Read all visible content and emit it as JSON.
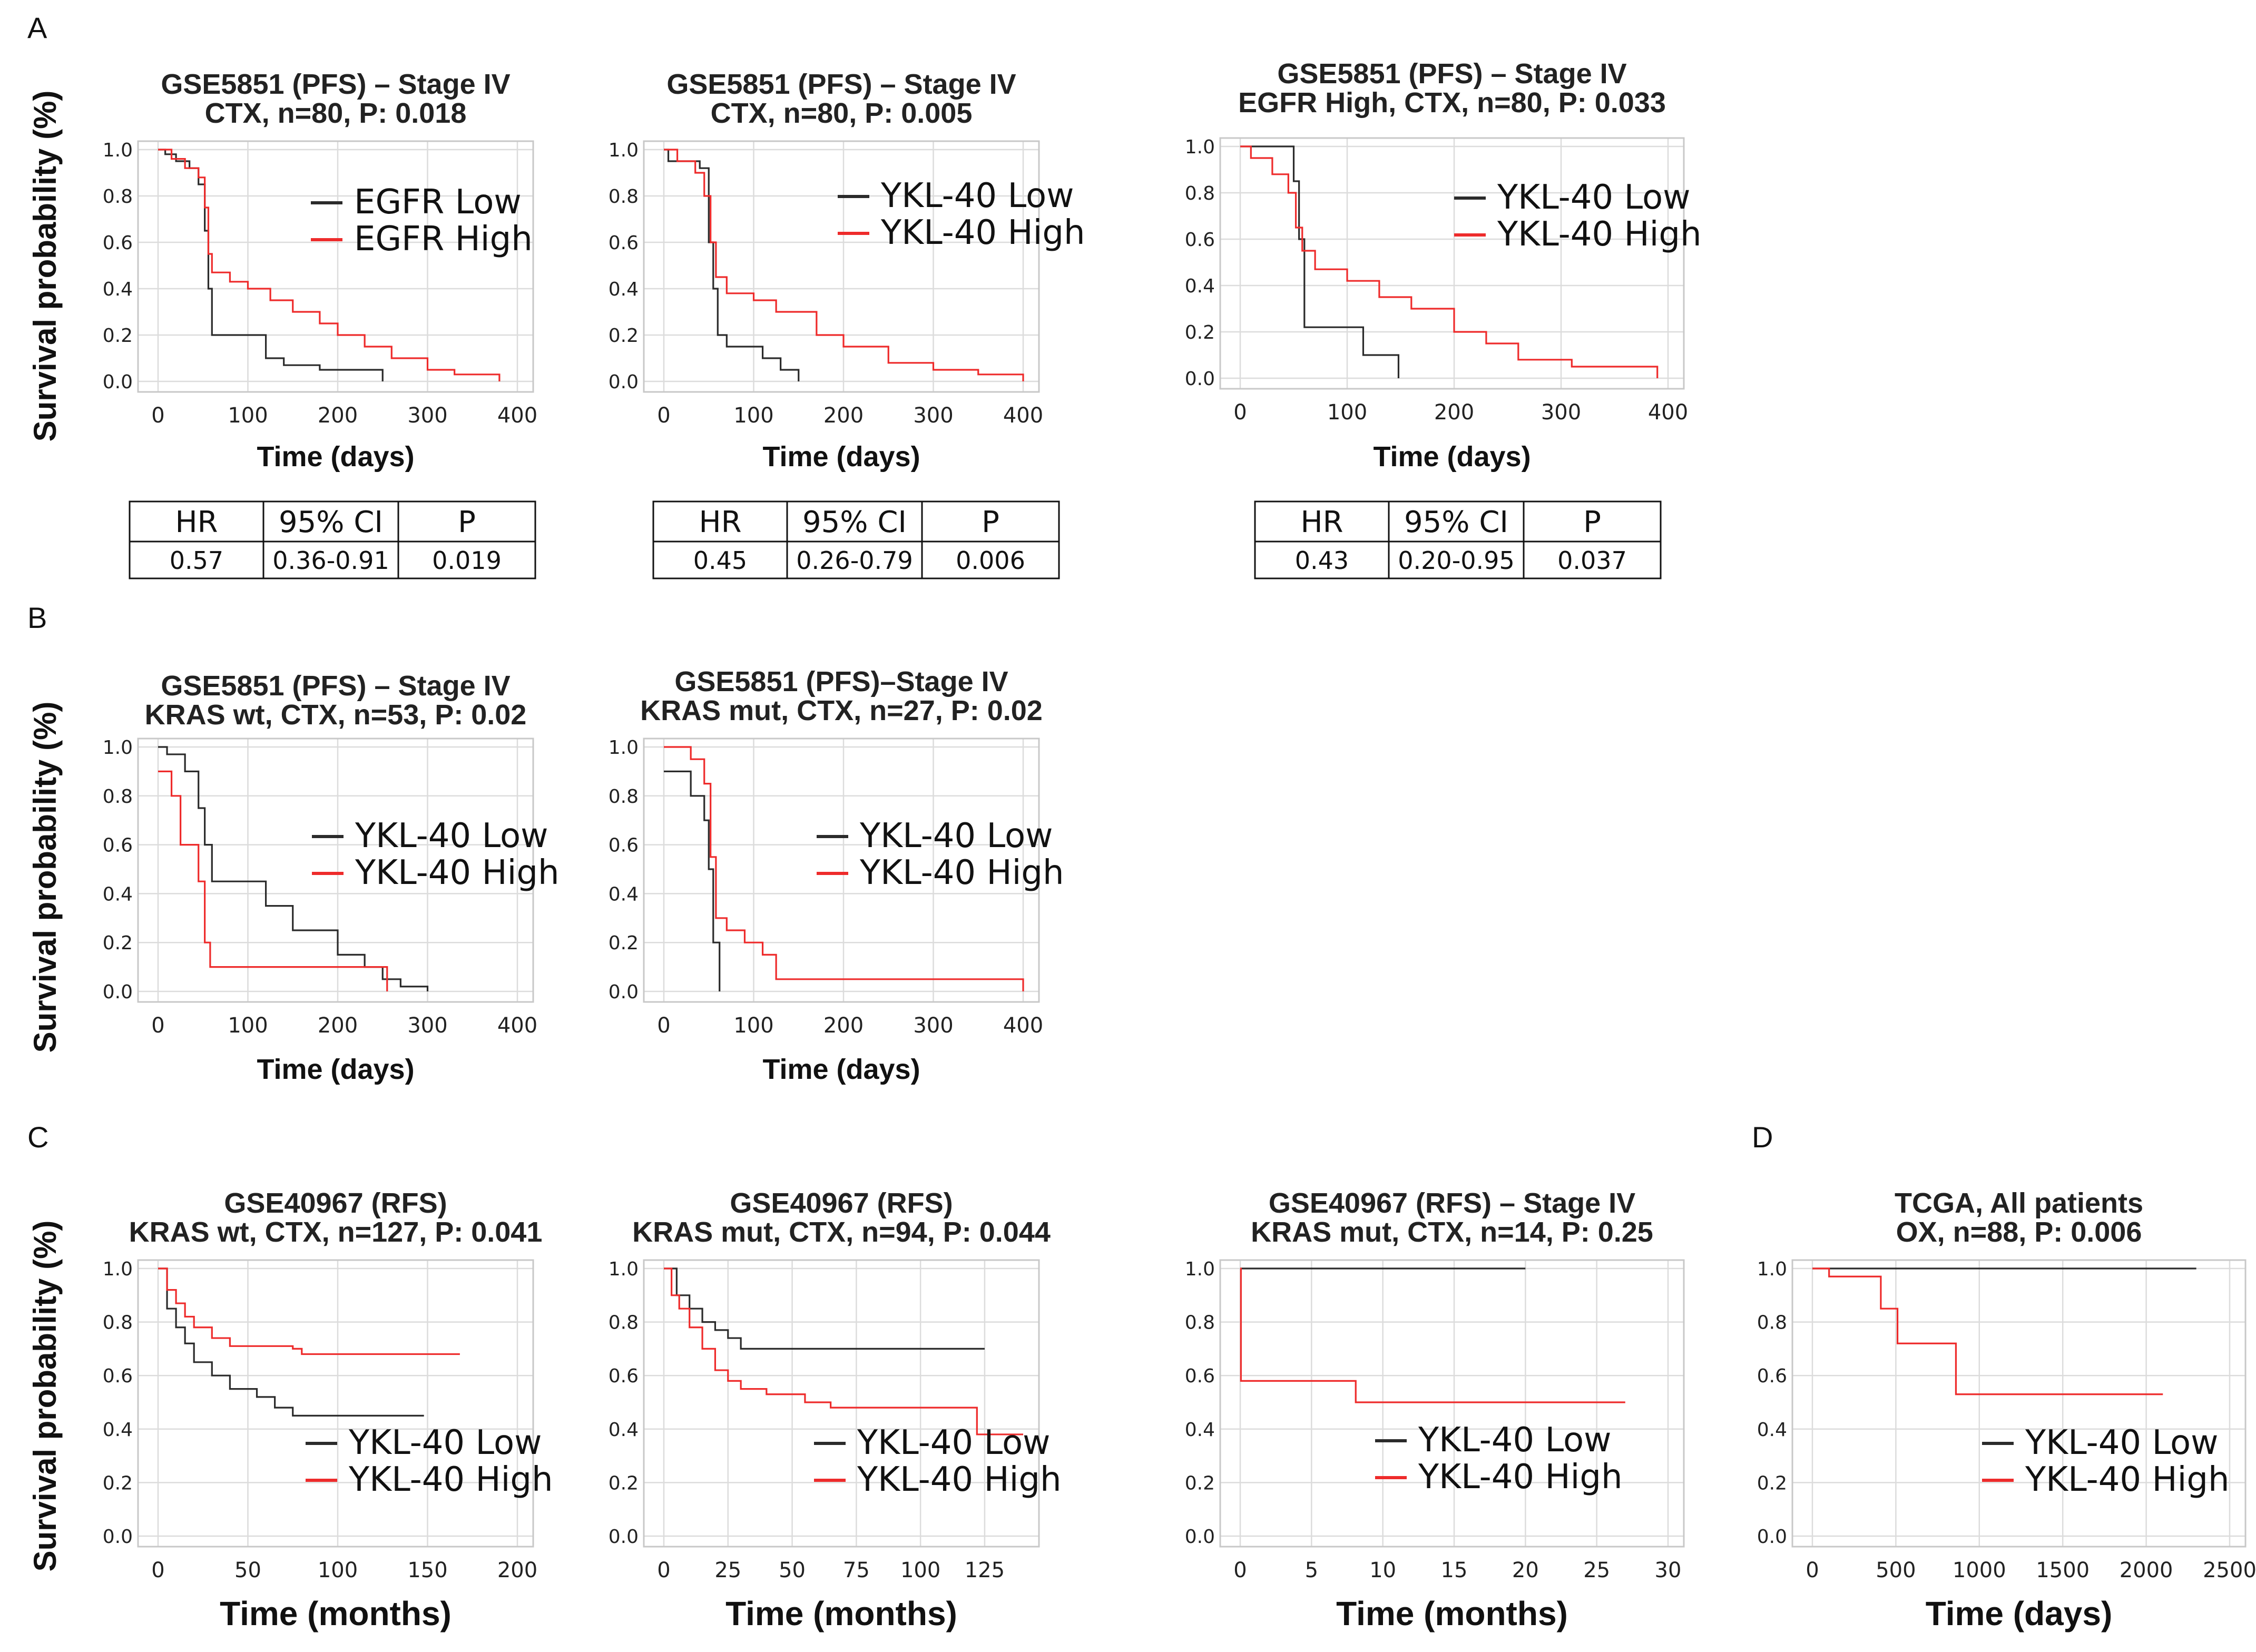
{
  "panel_labels": [
    "A",
    "B",
    "C",
    "D"
  ],
  "y_axis_label": "Survival probability (%)",
  "colors": {
    "low": "#2b2b2b",
    "high": "#ee2b2b"
  },
  "tables": [
    {
      "headers": [
        "HR",
        "95% CI",
        "P"
      ],
      "values": [
        "0.57",
        "0.36-0.91",
        "0.019"
      ]
    },
    {
      "headers": [
        "HR",
        "95% CI",
        "P"
      ],
      "values": [
        "0.45",
        "0.26-0.79",
        "0.006"
      ]
    },
    {
      "headers": [
        "HR",
        "95% CI",
        "P"
      ],
      "values": [
        "0.43",
        "0.20-0.95",
        "0.037"
      ]
    }
  ],
  "chart_data": [
    {
      "type": "line",
      "title": [
        "GSE5851 (PFS) – Stage IV",
        "CTX, n=80, P: 0.018"
      ],
      "xlabel": "Time (days)",
      "ylabel": "Survival probability (%)",
      "xlim": [
        0,
        400
      ],
      "ylim": [
        0,
        1.0
      ],
      "xticks": [
        0,
        100,
        200,
        300,
        400
      ],
      "yticks": [
        0.0,
        0.2,
        0.4,
        0.6,
        0.8,
        1.0
      ],
      "legend": {
        "position": "right",
        "labels": [
          "EGFR Low",
          "EGFR High"
        ]
      },
      "series": [
        {
          "name": "EGFR Low",
          "points": [
            [
              0,
              1.0
            ],
            [
              8,
              0.98
            ],
            [
              20,
              0.95
            ],
            [
              35,
              0.92
            ],
            [
              45,
              0.85
            ],
            [
              52,
              0.65
            ],
            [
              56,
              0.4
            ],
            [
              60,
              0.2
            ],
            [
              100,
              0.2
            ],
            [
              120,
              0.1
            ],
            [
              140,
              0.07
            ],
            [
              180,
              0.05
            ],
            [
              250,
              0.0
            ]
          ]
        },
        {
          "name": "EGFR High",
          "points": [
            [
              0,
              1.0
            ],
            [
              15,
              0.96
            ],
            [
              30,
              0.92
            ],
            [
              45,
              0.88
            ],
            [
              52,
              0.75
            ],
            [
              56,
              0.55
            ],
            [
              60,
              0.47
            ],
            [
              80,
              0.43
            ],
            [
              100,
              0.4
            ],
            [
              125,
              0.35
            ],
            [
              150,
              0.3
            ],
            [
              180,
              0.25
            ],
            [
              200,
              0.2
            ],
            [
              230,
              0.15
            ],
            [
              260,
              0.1
            ],
            [
              300,
              0.05
            ],
            [
              330,
              0.03
            ],
            [
              380,
              0.0
            ]
          ]
        }
      ]
    },
    {
      "type": "line",
      "title": [
        "GSE5851 (PFS) – Stage IV",
        "CTX, n=80, P: 0.005"
      ],
      "xlabel": "Time (days)",
      "ylabel": "Survival probability (%)",
      "xlim": [
        0,
        400
      ],
      "ylim": [
        0,
        1.0
      ],
      "xticks": [
        0,
        100,
        200,
        300,
        400
      ],
      "yticks": [
        0.0,
        0.2,
        0.4,
        0.6,
        0.8,
        1.0
      ],
      "legend": {
        "position": "right",
        "labels": [
          "YKL-40 Low",
          "YKL-40 High"
        ]
      },
      "series": [
        {
          "name": "YKL-40 Low",
          "points": [
            [
              0,
              1.0
            ],
            [
              5,
              0.95
            ],
            [
              40,
              0.92
            ],
            [
              50,
              0.6
            ],
            [
              55,
              0.4
            ],
            [
              60,
              0.2
            ],
            [
              70,
              0.15
            ],
            [
              110,
              0.1
            ],
            [
              130,
              0.05
            ],
            [
              150,
              0.0
            ]
          ]
        },
        {
          "name": "YKL-40 High",
          "points": [
            [
              0,
              1.0
            ],
            [
              15,
              0.95
            ],
            [
              35,
              0.9
            ],
            [
              45,
              0.8
            ],
            [
              52,
              0.6
            ],
            [
              58,
              0.45
            ],
            [
              70,
              0.38
            ],
            [
              100,
              0.35
            ],
            [
              125,
              0.3
            ],
            [
              170,
              0.2
            ],
            [
              200,
              0.15
            ],
            [
              250,
              0.08
            ],
            [
              300,
              0.05
            ],
            [
              350,
              0.03
            ],
            [
              400,
              0.0
            ]
          ]
        }
      ]
    },
    {
      "type": "line",
      "title": [
        "GSE5851 (PFS) – Stage IV",
        "EGFR High, CTX, n=80, P: 0.033"
      ],
      "xlabel": "Time (days)",
      "ylabel": "Survival probability (%)",
      "xlim": [
        0,
        400
      ],
      "ylim": [
        0,
        1.0
      ],
      "xticks": [
        0,
        100,
        200,
        300,
        400
      ],
      "yticks": [
        0.0,
        0.2,
        0.4,
        0.6,
        0.8,
        1.0
      ],
      "legend": {
        "position": "right",
        "labels": [
          "YKL-40 Low",
          "YKL-40 High"
        ]
      },
      "series": [
        {
          "name": "YKL-40 Low",
          "points": [
            [
              0,
              1.0
            ],
            [
              45,
              1.0
            ],
            [
              50,
              0.85
            ],
            [
              55,
              0.6
            ],
            [
              60,
              0.22
            ],
            [
              110,
              0.22
            ],
            [
              115,
              0.1
            ],
            [
              145,
              0.1
            ],
            [
              148,
              0.0
            ]
          ]
        },
        {
          "name": "YKL-40 High",
          "points": [
            [
              0,
              1.0
            ],
            [
              10,
              0.95
            ],
            [
              30,
              0.88
            ],
            [
              45,
              0.8
            ],
            [
              52,
              0.65
            ],
            [
              58,
              0.55
            ],
            [
              70,
              0.47
            ],
            [
              100,
              0.42
            ],
            [
              130,
              0.35
            ],
            [
              160,
              0.3
            ],
            [
              200,
              0.2
            ],
            [
              230,
              0.15
            ],
            [
              260,
              0.08
            ],
            [
              310,
              0.05
            ],
            [
              390,
              0.0
            ]
          ]
        }
      ]
    },
    {
      "type": "line",
      "title": [
        "GSE5851 (PFS) – Stage IV",
        "KRAS wt, CTX, n=53, P: 0.02"
      ],
      "xlabel": "Time (days)",
      "ylabel": "Survival probability (%)",
      "xlim": [
        0,
        400
      ],
      "ylim": [
        0,
        1.0
      ],
      "xticks": [
        0,
        100,
        200,
        300,
        400
      ],
      "yticks": [
        0.0,
        0.2,
        0.4,
        0.6,
        0.8,
        1.0
      ],
      "legend": {
        "position": "right",
        "labels": [
          "YKL-40 Low",
          "YKL-40 High"
        ]
      },
      "series": [
        {
          "name": "YKL-40 Low",
          "points": [
            [
              0,
              1.0
            ],
            [
              10,
              0.97
            ],
            [
              30,
              0.9
            ],
            [
              45,
              0.75
            ],
            [
              52,
              0.6
            ],
            [
              60,
              0.45
            ],
            [
              110,
              0.45
            ],
            [
              120,
              0.35
            ],
            [
              150,
              0.25
            ],
            [
              200,
              0.15
            ],
            [
              230,
              0.1
            ],
            [
              250,
              0.05
            ],
            [
              270,
              0.02
            ],
            [
              300,
              0.0
            ]
          ]
        },
        {
          "name": "YKL-40 High",
          "points": [
            [
              0,
              0.9
            ],
            [
              15,
              0.8
            ],
            [
              25,
              0.6
            ],
            [
              45,
              0.45
            ],
            [
              52,
              0.2
            ],
            [
              58,
              0.1
            ],
            [
              250,
              0.1
            ],
            [
              255,
              0.0
            ]
          ]
        }
      ]
    },
    {
      "type": "line",
      "title": [
        "GSE5851 (PFS)–Stage IV",
        "KRAS mut, CTX, n=27, P: 0.02"
      ],
      "xlabel": "Time (days)",
      "ylabel": "Survival probability (%)",
      "xlim": [
        0,
        400
      ],
      "ylim": [
        0,
        1.0
      ],
      "xticks": [
        0,
        100,
        200,
        300,
        400
      ],
      "yticks": [
        0.0,
        0.2,
        0.4,
        0.6,
        0.8,
        1.0
      ],
      "legend": {
        "position": "right",
        "labels": [
          "YKL-40 Low",
          "YKL-40 High"
        ]
      },
      "series": [
        {
          "name": "YKL-40 Low",
          "points": [
            [
              0,
              0.9
            ],
            [
              30,
              0.8
            ],
            [
              45,
              0.7
            ],
            [
              50,
              0.5
            ],
            [
              55,
              0.2
            ],
            [
              62,
              0.0
            ]
          ]
        },
        {
          "name": "YKL-40 High",
          "points": [
            [
              0,
              1.0
            ],
            [
              30,
              0.95
            ],
            [
              45,
              0.85
            ],
            [
              52,
              0.55
            ],
            [
              58,
              0.3
            ],
            [
              70,
              0.25
            ],
            [
              90,
              0.2
            ],
            [
              110,
              0.15
            ],
            [
              125,
              0.05
            ],
            [
              400,
              0.0
            ]
          ]
        }
      ]
    },
    {
      "type": "line",
      "title": [
        "GSE40967 (RFS)",
        "KRAS wt, CTX, n=127, P: 0.041"
      ],
      "xlabel": "Time (months)",
      "ylabel": "Survival probability (%)",
      "xlim": [
        0,
        200
      ],
      "ylim": [
        0,
        1.0
      ],
      "xticks": [
        0,
        50,
        100,
        150,
        200
      ],
      "yticks": [
        0.0,
        0.2,
        0.4,
        0.6,
        0.8,
        1.0
      ],
      "legend": {
        "position": "bottom-right",
        "labels": [
          "YKL-40 Low",
          "YKL-40 High"
        ]
      },
      "series": [
        {
          "name": "YKL-40 Low",
          "points": [
            [
              0,
              1.0
            ],
            [
              5,
              0.85
            ],
            [
              10,
              0.78
            ],
            [
              15,
              0.72
            ],
            [
              20,
              0.65
            ],
            [
              30,
              0.6
            ],
            [
              40,
              0.55
            ],
            [
              55,
              0.52
            ],
            [
              65,
              0.48
            ],
            [
              75,
              0.45
            ],
            [
              148,
              0.45
            ]
          ]
        },
        {
          "name": "YKL-40 High",
          "points": [
            [
              0,
              1.0
            ],
            [
              5,
              0.92
            ],
            [
              10,
              0.87
            ],
            [
              15,
              0.82
            ],
            [
              20,
              0.78
            ],
            [
              30,
              0.74
            ],
            [
              40,
              0.71
            ],
            [
              75,
              0.7
            ],
            [
              80,
              0.68
            ],
            [
              168,
              0.68
            ]
          ]
        }
      ]
    },
    {
      "type": "line",
      "title": [
        "GSE40967 (RFS)",
        "KRAS mut, CTX, n=94, P: 0.044"
      ],
      "xlabel": "Time (months)",
      "ylabel": "Survival probability (%)",
      "xlim": [
        0,
        140
      ],
      "ylim": [
        0,
        1.0
      ],
      "xticks": [
        0,
        25,
        50,
        75,
        100,
        125
      ],
      "yticks": [
        0.0,
        0.2,
        0.4,
        0.6,
        0.8,
        1.0
      ],
      "legend": {
        "position": "bottom-right",
        "labels": [
          "YKL-40 Low",
          "YKL-40 High"
        ]
      },
      "series": [
        {
          "name": "YKL-40 Low",
          "points": [
            [
              0,
              1.0
            ],
            [
              5,
              0.9
            ],
            [
              10,
              0.85
            ],
            [
              15,
              0.8
            ],
            [
              20,
              0.77
            ],
            [
              25,
              0.74
            ],
            [
              30,
              0.7
            ],
            [
              125,
              0.7
            ]
          ]
        },
        {
          "name": "YKL-40 High",
          "points": [
            [
              0,
              1.0
            ],
            [
              3,
              0.9
            ],
            [
              6,
              0.85
            ],
            [
              10,
              0.78
            ],
            [
              15,
              0.7
            ],
            [
              20,
              0.62
            ],
            [
              25,
              0.58
            ],
            [
              30,
              0.55
            ],
            [
              40,
              0.53
            ],
            [
              55,
              0.5
            ],
            [
              65,
              0.48
            ],
            [
              120,
              0.48
            ],
            [
              122,
              0.38
            ],
            [
              140,
              0.38
            ]
          ]
        }
      ]
    },
    {
      "type": "line",
      "title": [
        "GSE40967 (RFS) – Stage IV",
        "KRAS mut, CTX, n=14, P: 0.25"
      ],
      "xlabel": "Time (months)",
      "ylabel": "Survival probability (%)",
      "xlim": [
        0,
        30
      ],
      "ylim": [
        0,
        1.0
      ],
      "xticks": [
        0,
        5,
        10,
        15,
        20,
        25,
        30
      ],
      "yticks": [
        0.0,
        0.2,
        0.4,
        0.6,
        0.8,
        1.0
      ],
      "legend": {
        "position": "bottom-right",
        "labels": [
          "YKL-40 Low",
          "YKL-40 High"
        ]
      },
      "series": [
        {
          "name": "YKL-40 Low",
          "points": [
            [
              0,
              1.0
            ],
            [
              20,
              1.0
            ]
          ]
        },
        {
          "name": "YKL-40 High",
          "points": [
            [
              0,
              1.0
            ],
            [
              0.05,
              0.58
            ],
            [
              8,
              0.58
            ],
            [
              8.1,
              0.5
            ],
            [
              27,
              0.5
            ]
          ]
        }
      ]
    },
    {
      "type": "line",
      "title": [
        "TCGA, All patients",
        "OX, n=88, P: 0.006"
      ],
      "xlabel": "Time (days)",
      "ylabel": "Survival probability (%)",
      "xlim": [
        0,
        2500
      ],
      "ylim": [
        0,
        1.0
      ],
      "xticks": [
        0,
        500,
        1000,
        1500,
        2000,
        2500
      ],
      "yticks": [
        0.0,
        0.2,
        0.4,
        0.6,
        0.8,
        1.0
      ],
      "legend": {
        "position": "bottom-right",
        "labels": [
          "YKL-40 Low",
          "YKL-40 High"
        ]
      },
      "series": [
        {
          "name": "YKL-40 Low",
          "points": [
            [
              0,
              1.0
            ],
            [
              2300,
              1.0
            ]
          ]
        },
        {
          "name": "YKL-40 High",
          "points": [
            [
              0,
              1.0
            ],
            [
              100,
              0.97
            ],
            [
              400,
              0.97
            ],
            [
              410,
              0.85
            ],
            [
              500,
              0.85
            ],
            [
              510,
              0.72
            ],
            [
              850,
              0.72
            ],
            [
              860,
              0.53
            ],
            [
              2100,
              0.53
            ]
          ]
        }
      ]
    }
  ]
}
